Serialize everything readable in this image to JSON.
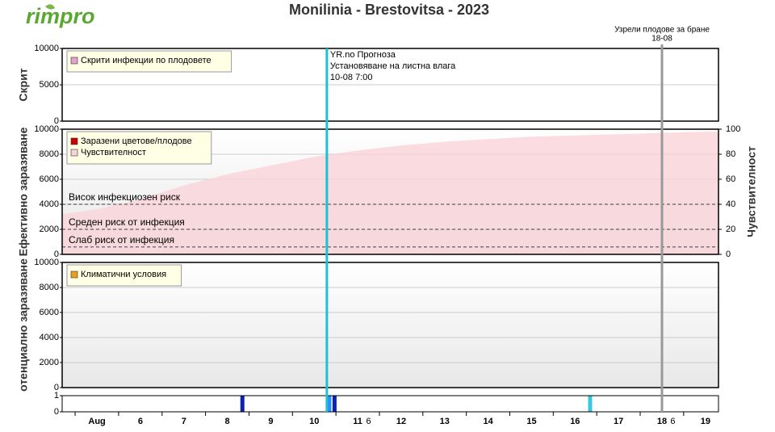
{
  "logo": "rimpro",
  "title": "Monilinia - Brestovitsa - 2023",
  "markers": [
    {
      "x": 10.29,
      "color": "#1ec0d2",
      "lines": [
        "YR.no Прогноза",
        "Установяване на листна влага",
        "10-08 7:00"
      ]
    },
    {
      "x": 18,
      "color": "#999999",
      "lines": [
        "Узрели плодове за бране",
        "18-08"
      ]
    }
  ],
  "chart_data": [
    {
      "type": "bar",
      "ylabel": "Скрит",
      "ylim": [
        0,
        10000
      ],
      "yticks": [
        0,
        5000,
        10000
      ],
      "grid": true,
      "series": [
        {
          "name": "Скрити инфекции по плодовете",
          "color": "#e6a0cf",
          "values": []
        }
      ]
    },
    {
      "type": "area",
      "ylabel": "Ефективно заразяване",
      "y2label": "Чувствителност",
      "ylim": [
        0,
        10000
      ],
      "yticks": [
        0,
        2000,
        4000,
        6000,
        8000,
        10000
      ],
      "y2lim": [
        0,
        100
      ],
      "y2ticks": [
        0,
        20,
        40,
        60,
        80,
        100
      ],
      "grid": true,
      "risk_lines": [
        {
          "value": 4000,
          "label": "Висок инфекциозен риск"
        },
        {
          "value": 2000,
          "label": "Среден риск от инфекция"
        },
        {
          "value": 600,
          "label": "Слаб риск от инфекция"
        }
      ],
      "series": [
        {
          "name": "Заразени цветове/плодове",
          "color": "#cc0000",
          "values": []
        },
        {
          "name": "Чувствителност",
          "color": "#f9d3da",
          "axis": "y2",
          "x": [
            4.2,
            5,
            6,
            7,
            8,
            9,
            10,
            11,
            12,
            13,
            14,
            15,
            16,
            17,
            18,
            19,
            19.3
          ],
          "values": [
            32,
            36,
            44,
            55,
            64,
            71,
            78,
            83,
            87,
            90,
            92,
            94,
            95,
            96,
            97,
            98,
            98
          ]
        }
      ]
    },
    {
      "type": "bar",
      "ylabel": "отенциално заразяване",
      "ylim": [
        0,
        10000
      ],
      "yticks": [
        0,
        2000,
        4000,
        6000,
        8000,
        10000
      ],
      "grid": true,
      "series": [
        {
          "name": "Климатични условия",
          "color": "#e8a020",
          "values": []
        }
      ]
    },
    {
      "type": "strip",
      "ylim": [
        0,
        1
      ],
      "yticks": [
        0,
        1
      ],
      "xlim": [
        4.2,
        19.3
      ],
      "xticks": [
        {
          "value": 5,
          "label": "Aug"
        },
        6,
        7,
        8,
        9,
        10,
        11,
        12,
        13,
        14,
        15,
        16,
        17,
        18,
        19
      ],
      "minor_ticks": [
        {
          "value": 11.25,
          "label": "6"
        },
        {
          "value": 18.25,
          "label": "6"
        }
      ],
      "x": [
        8.3,
        10.3,
        10.42,
        16.3
      ],
      "values": [
        1,
        1,
        1,
        1
      ],
      "colors": [
        "#0b22b4",
        "#2a8cff",
        "#0b22b4",
        "#3cc6e0"
      ]
    }
  ]
}
